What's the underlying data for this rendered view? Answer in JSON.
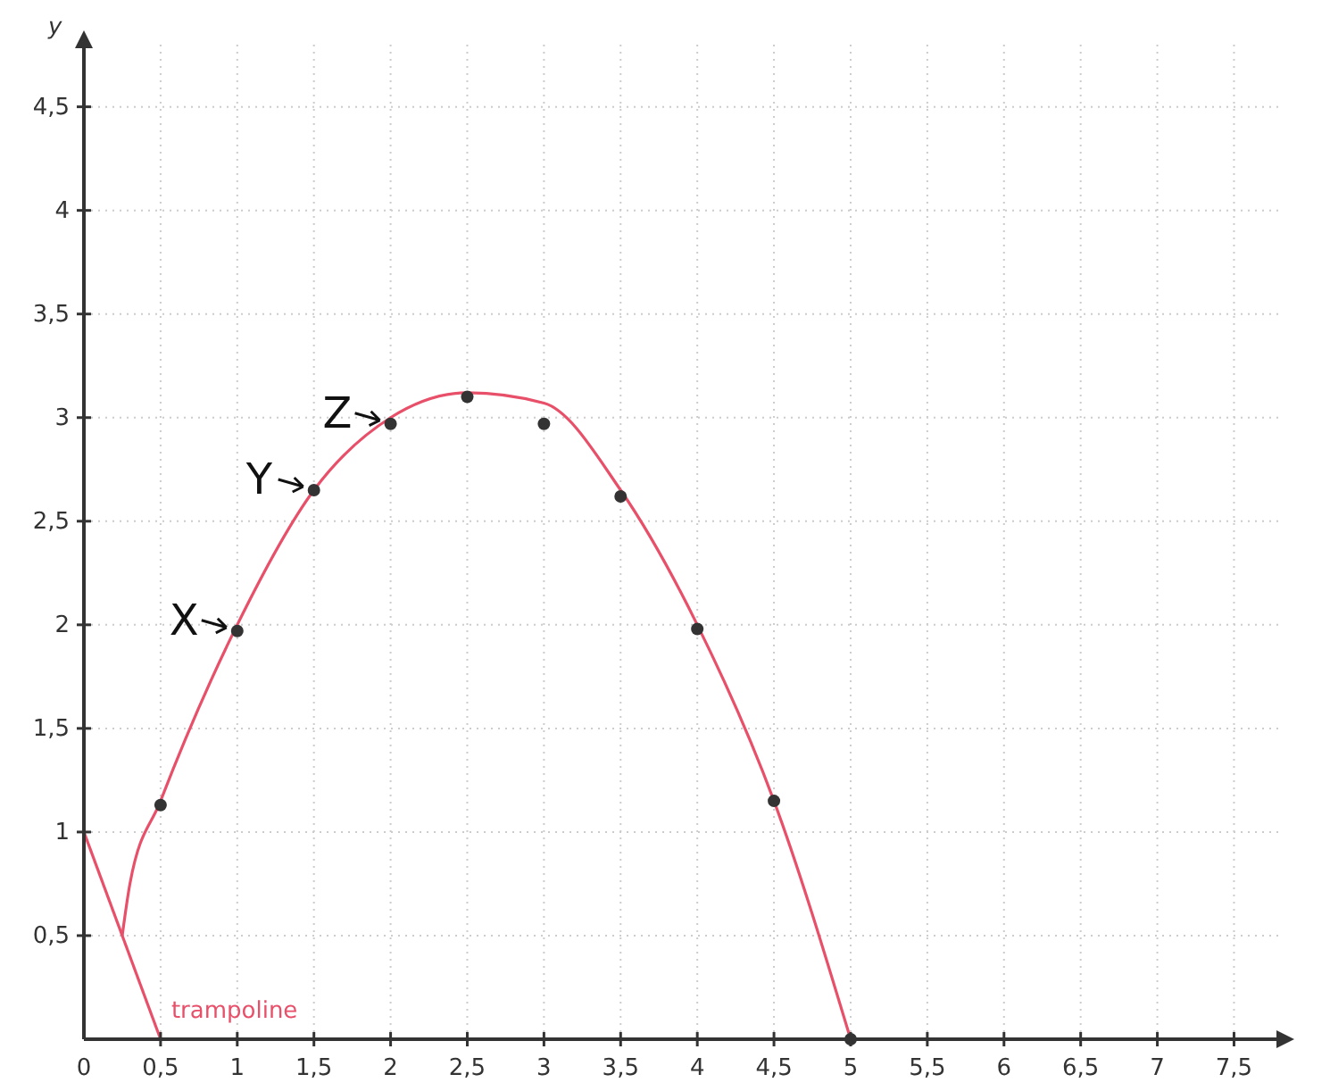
{
  "chart_data": {
    "type": "scatter",
    "ylabel": "y",
    "xlim": [
      0,
      7.8
    ],
    "ylim": [
      0,
      4.8
    ],
    "xticks": [
      {
        "value": 0,
        "label": "0"
      },
      {
        "value": 0.5,
        "label": "0,5"
      },
      1,
      {
        "value": 1.5,
        "label": "1,5"
      },
      2,
      {
        "value": 2.5,
        "label": "2,5"
      },
      3,
      {
        "value": 3.5,
        "label": "3,5"
      },
      4,
      {
        "value": 4.5,
        "label": "4,5"
      },
      5,
      {
        "value": 5.5,
        "label": "5,5"
      },
      6,
      {
        "value": 6.5,
        "label": "6,5"
      },
      7,
      {
        "value": 7.5,
        "label": "7,5"
      }
    ],
    "yticks": [
      {
        "value": 0,
        "label": null
      },
      {
        "value": 0.5,
        "label": "0,5"
      },
      1,
      {
        "value": 1.5,
        "label": "1,5"
      },
      2,
      {
        "value": 2.5,
        "label": "2,5"
      },
      3,
      {
        "value": 3.5,
        "label": "3,5"
      },
      4,
      {
        "value": 4.5,
        "label": "4,5"
      }
    ],
    "grid": true,
    "series": [
      {
        "type": "line",
        "color": "#e8506a",
        "x": [
          0.25,
          0.3,
          0.5,
          1,
          1.5,
          2,
          2.5,
          3,
          3.5,
          4,
          4.5,
          5
        ],
        "values": [
          0.5,
          0.75,
          1.15,
          2,
          2.65,
          3,
          3.12,
          3.07,
          2.65,
          2,
          1.15,
          0
        ]
      },
      {
        "type": "line",
        "name": "trampoline",
        "color": "#e8506a",
        "x": [
          0,
          0.5
        ],
        "values": [
          1,
          0
        ]
      },
      {
        "color": "#333333",
        "marker": "circle",
        "x": [
          0.5,
          1,
          1.5,
          2,
          2.5,
          3,
          3.5,
          4,
          4.5,
          5
        ],
        "values": [
          1.13,
          1.97,
          2.65,
          2.97,
          3.1,
          2.97,
          2.62,
          1.98,
          1.15,
          0
        ]
      }
    ],
    "annotations": [
      {
        "text": "X",
        "x": 1,
        "y": 1.97
      },
      {
        "text": "Y",
        "x": 1.5,
        "y": 2.65
      },
      {
        "text": "Z",
        "x": 2,
        "y": 2.97
      }
    ]
  }
}
